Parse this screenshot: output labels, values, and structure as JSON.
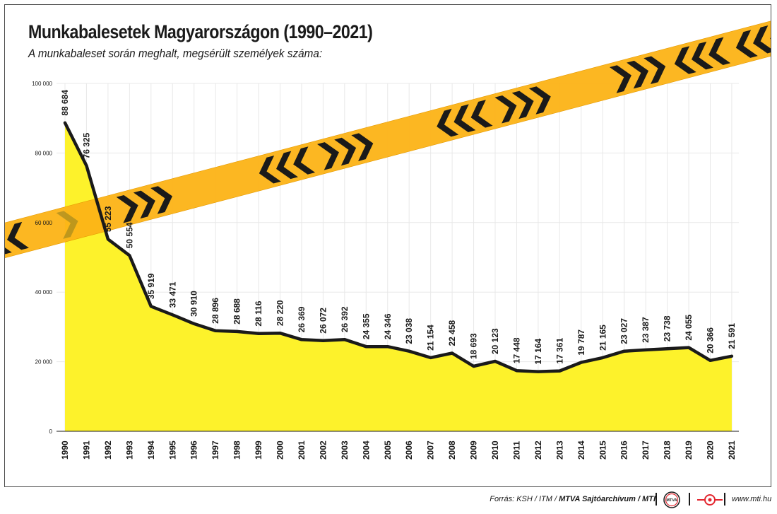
{
  "title": "Munkabalesetek Magyarországon (1990–2021)",
  "subtitle": "A munkabaleset során meghalt, megsérült személyek száma:",
  "chart_data": {
    "type": "area",
    "categories": [
      "1990",
      "1991",
      "1992",
      "1993",
      "1994",
      "1995",
      "1996",
      "1997",
      "1998",
      "1999",
      "2000",
      "2001",
      "2002",
      "2003",
      "2004",
      "2005",
      "2006",
      "2007",
      "2008",
      "2009",
      "2010",
      "2011",
      "2012",
      "2013",
      "2014",
      "2015",
      "2016",
      "2017",
      "2018",
      "2019",
      "2020",
      "2021"
    ],
    "values": [
      88684,
      76325,
      55223,
      50554,
      35919,
      33471,
      30910,
      28896,
      28688,
      28116,
      28220,
      26369,
      26072,
      26392,
      24355,
      24346,
      23038,
      21154,
      22458,
      18693,
      20123,
      17448,
      17164,
      17361,
      19787,
      21165,
      23027,
      23387,
      23738,
      24055,
      20366,
      21591
    ],
    "value_labels": [
      "88 684",
      "76 325",
      "55 223",
      "50 554",
      "35 919",
      "33 471",
      "30 910",
      "28 896",
      "28 688",
      "28 116",
      "28 220",
      "26 369",
      "26 072",
      "26 392",
      "24 355",
      "24 346",
      "23 038",
      "21 154",
      "22 458",
      "18 693",
      "20 123",
      "17 448",
      "17 164",
      "17 361",
      "19 787",
      "21 165",
      "23 027",
      "23 387",
      "23 738",
      "24 055",
      "20 366",
      "21 591"
    ],
    "yticks": [
      0,
      20000,
      40000,
      60000,
      80000,
      100000
    ],
    "ytick_labels": [
      "0",
      "20 000",
      "40 000",
      "60 000",
      "80 000",
      "100 000"
    ],
    "ylim": [
      0,
      100000
    ],
    "grid": true,
    "colors": {
      "fill": "#fdf22b",
      "line": "#1a1a1a",
      "grid": "#e8e8e8",
      "tape": "#fcb316",
      "chevron": "#1a1a1a"
    }
  },
  "footer": {
    "source_prefix": "Forrás: KSH / ITM / ",
    "source_bold": "MTVA Sajtóarchívum / MTI",
    "logo1_text": "MTVA",
    "site": "www.mti.hu"
  }
}
